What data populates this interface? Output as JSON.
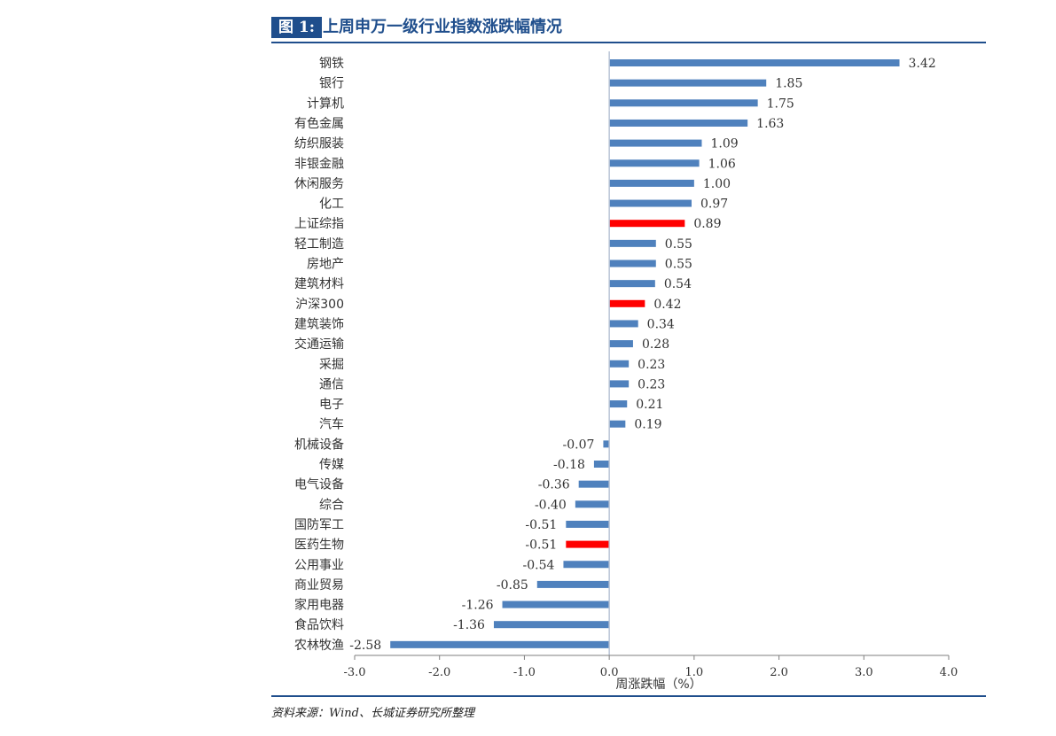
{
  "figure": {
    "tag": "图 1:",
    "title": "上周申万一级行业指数涨跌幅情况"
  },
  "source": "资料来源：Wind、长城证券研究所整理",
  "colors": {
    "bar_default": "#4f81bd",
    "bar_highlight": "#ff0000",
    "title_blue": "#1f4e8c",
    "axis": "#b8c4d6"
  },
  "chart_data": {
    "type": "bar",
    "orientation": "horizontal",
    "xlabel": "周涨跌幅（%）",
    "ylabel": "",
    "xlim": [
      -3.0,
      4.0
    ],
    "xticks": [
      "-3.0",
      "-2.0",
      "-1.0",
      "0.0",
      "1.0",
      "2.0",
      "3.0",
      "4.0"
    ],
    "grid": false,
    "categories": [
      "钢铁",
      "银行",
      "计算机",
      "有色金属",
      "纺织服装",
      "非银金融",
      "休闲服务",
      "化工",
      "上证综指",
      "轻工制造",
      "房地产",
      "建筑材料",
      "沪深300",
      "建筑装饰",
      "交通运输",
      "采掘",
      "通信",
      "电子",
      "汽车",
      "机械设备",
      "传媒",
      "电气设备",
      "综合",
      "国防军工",
      "医药生物",
      "公用事业",
      "商业贸易",
      "家用电器",
      "食品饮料",
      "农林牧渔"
    ],
    "values": [
      3.42,
      1.85,
      1.75,
      1.63,
      1.09,
      1.06,
      1.0,
      0.97,
      0.89,
      0.55,
      0.55,
      0.54,
      0.42,
      0.34,
      0.28,
      0.23,
      0.23,
      0.21,
      0.19,
      -0.07,
      -0.18,
      -0.36,
      -0.4,
      -0.51,
      -0.51,
      -0.54,
      -0.85,
      -1.26,
      -1.36,
      -2.58
    ],
    "value_labels": [
      "3.42",
      "1.85",
      "1.75",
      "1.63",
      "1.09",
      "1.06",
      "1.00",
      "0.97",
      "0.89",
      "0.55",
      "0.55",
      "0.54",
      "0.42",
      "0.34",
      "0.28",
      "0.23",
      "0.23",
      "0.21",
      "0.19",
      "-0.07",
      "-0.18",
      "-0.36",
      "-0.40",
      "-0.51",
      "-0.51",
      "-0.54",
      "-0.85",
      "-1.26",
      "-1.36",
      "-2.58"
    ],
    "highlighted": [
      "上证综指",
      "沪深300",
      "医药生物"
    ]
  }
}
